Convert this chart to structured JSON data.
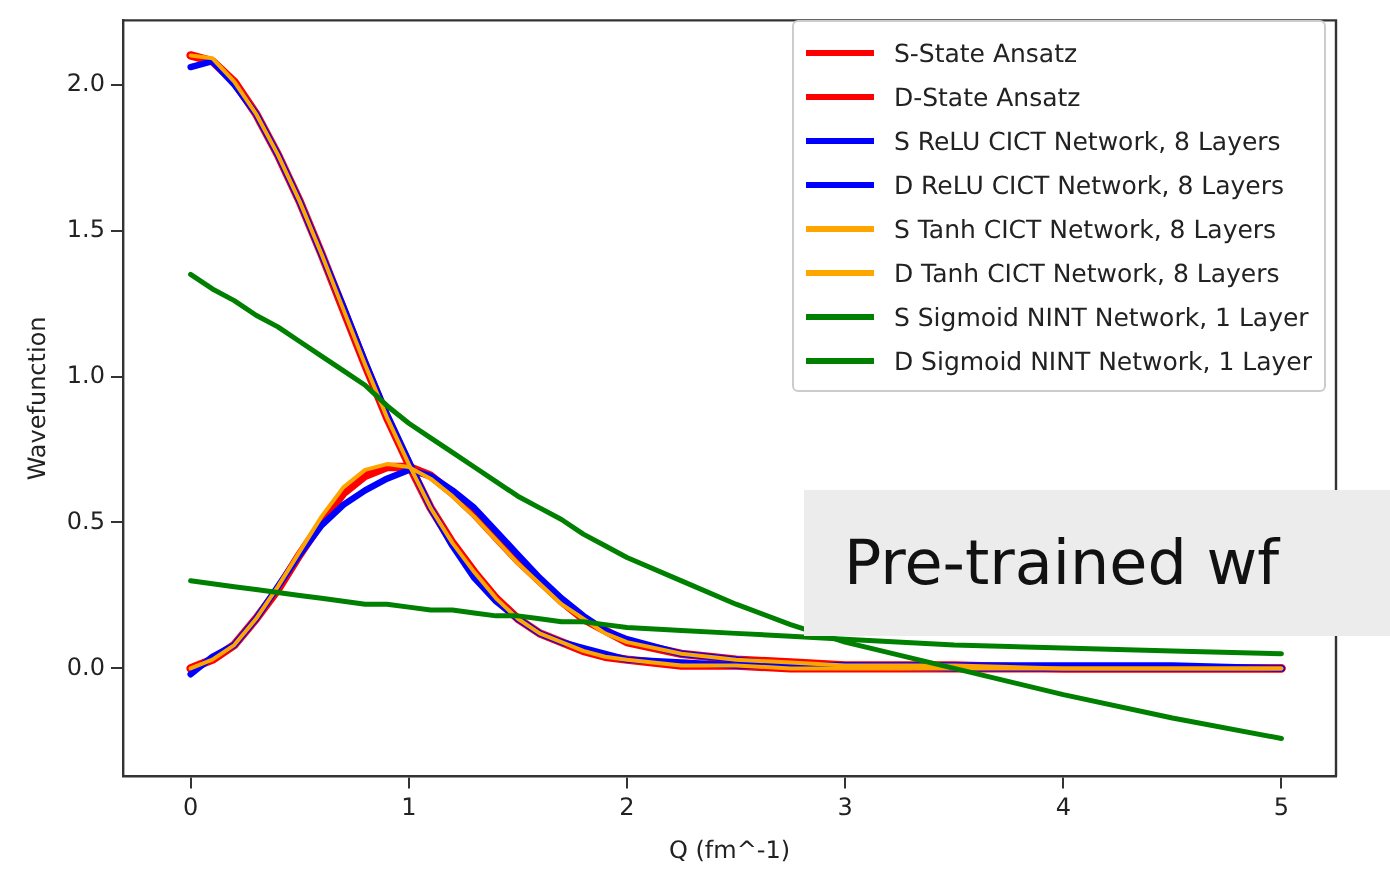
{
  "chart_data": {
    "type": "line",
    "xlabel": "Q (fm^-1)",
    "ylabel": "Wavefunction",
    "x": [
      0,
      0.1,
      0.2,
      0.3,
      0.4,
      0.5,
      0.6,
      0.7,
      0.8,
      0.9,
      1.0,
      1.1,
      1.2,
      1.3,
      1.4,
      1.5,
      1.6,
      1.7,
      1.8,
      1.9,
      2.0,
      2.25,
      2.5,
      2.75,
      3.0,
      3.5,
      4.0,
      4.5,
      5.0
    ],
    "series": [
      {
        "name": "S-State Ansatz",
        "color": "#ff0000",
        "values": [
          2.1,
          2.08,
          2.01,
          1.9,
          1.76,
          1.6,
          1.42,
          1.23,
          1.04,
          0.86,
          0.7,
          0.55,
          0.43,
          0.33,
          0.24,
          0.17,
          0.12,
          0.09,
          0.06,
          0.04,
          0.03,
          0.01,
          0.01,
          0,
          0,
          0,
          0,
          0,
          0
        ]
      },
      {
        "name": "D-State Ansatz",
        "color": "#ff0000",
        "values": [
          0,
          0.03,
          0.08,
          0.17,
          0.27,
          0.39,
          0.5,
          0.6,
          0.66,
          0.69,
          0.69,
          0.66,
          0.6,
          0.53,
          0.45,
          0.37,
          0.3,
          0.23,
          0.17,
          0.13,
          0.09,
          0.05,
          0.03,
          0.02,
          0.01,
          0.01,
          0,
          0,
          0
        ]
      },
      {
        "name": "S ReLU CICT Network, 8 Layers",
        "color": "#0000ff",
        "values": [
          2.06,
          2.08,
          2.0,
          1.9,
          1.76,
          1.6,
          1.42,
          1.24,
          1.05,
          0.87,
          0.71,
          0.55,
          0.42,
          0.31,
          0.23,
          0.17,
          0.12,
          0.09,
          0.07,
          0.05,
          0.03,
          0.02,
          0.01,
          0.01,
          0.01,
          0.01,
          0.01,
          0.01,
          0
        ]
      },
      {
        "name": "D ReLU CICT Network, 8 Layers",
        "color": "#0000ff",
        "values": [
          -0.02,
          0.04,
          0.08,
          0.17,
          0.28,
          0.39,
          0.49,
          0.56,
          0.61,
          0.65,
          0.68,
          0.66,
          0.61,
          0.55,
          0.47,
          0.39,
          0.31,
          0.24,
          0.18,
          0.13,
          0.1,
          0.05,
          0.03,
          0.01,
          0.01,
          0,
          0,
          0,
          0
        ]
      },
      {
        "name": "S Tanh CICT Network, 8 Layers",
        "color": "#ffa500",
        "values": [
          2.1,
          2.09,
          2.01,
          1.9,
          1.76,
          1.6,
          1.42,
          1.23,
          1.04,
          0.86,
          0.7,
          0.55,
          0.43,
          0.33,
          0.24,
          0.17,
          0.12,
          0.09,
          0.06,
          0.04,
          0.03,
          0.01,
          0.01,
          0,
          0,
          0,
          0,
          0,
          0
        ]
      },
      {
        "name": "D Tanh CICT Network, 8 Layers",
        "color": "#ffa500",
        "values": [
          0,
          0.03,
          0.08,
          0.17,
          0.28,
          0.4,
          0.52,
          0.62,
          0.68,
          0.7,
          0.69,
          0.65,
          0.59,
          0.52,
          0.44,
          0.36,
          0.29,
          0.22,
          0.17,
          0.12,
          0.09,
          0.05,
          0.03,
          0.02,
          0.01,
          0.01,
          0,
          0,
          0
        ]
      },
      {
        "name": "S Sigmoid NINT Network, 1 Layer",
        "color": "#008000",
        "values": [
          1.35,
          1.3,
          1.26,
          1.21,
          1.17,
          1.12,
          1.07,
          1.02,
          0.97,
          0.9,
          0.84,
          0.79,
          0.74,
          0.69,
          0.64,
          0.59,
          0.55,
          0.51,
          0.46,
          0.42,
          0.38,
          0.3,
          0.22,
          0.15,
          0.09,
          0,
          -0.09,
          -0.17,
          -0.24
        ]
      },
      {
        "name": "D Sigmoid NINT Network, 1 Layer",
        "color": "#008000",
        "values": [
          0.3,
          0.29,
          0.28,
          0.27,
          0.26,
          0.25,
          0.24,
          0.23,
          0.22,
          0.22,
          0.21,
          0.2,
          0.2,
          0.19,
          0.18,
          0.18,
          0.17,
          0.16,
          0.16,
          0.15,
          0.14,
          0.13,
          0.12,
          0.11,
          0.1,
          0.08,
          0.07,
          0.06,
          0.05
        ]
      }
    ],
    "xlim": [
      -0.31,
      5.25
    ],
    "ylim": [
      -0.37,
      2.22
    ],
    "xticks": [
      0,
      1,
      2,
      3,
      4,
      5
    ],
    "yticks": [
      {
        "value": 0,
        "label": "0.0"
      },
      {
        "value": 0.5,
        "label": "0.5"
      },
      {
        "value": 1,
        "label": "1.0"
      },
      {
        "value": 1.5,
        "label": "1.5"
      },
      {
        "value": 2,
        "label": "2.0"
      }
    ],
    "grid": false,
    "legend": "top right",
    "marker": "none",
    "line_style": "solid",
    "annotations": [
      "Pre-trained wf"
    ]
  }
}
